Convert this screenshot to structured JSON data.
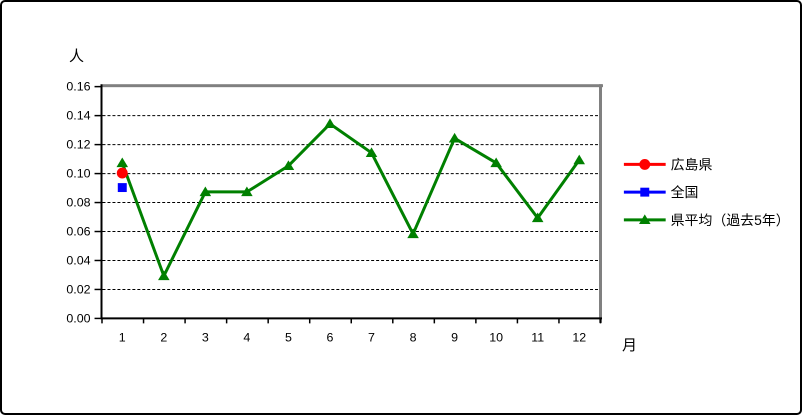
{
  "figure": {
    "y_unit_label": "人",
    "x_unit_label": "月"
  },
  "chart_data": {
    "type": "line",
    "title": "",
    "xlabel": "月",
    "ylabel": "人",
    "x_categories": [
      "1",
      "2",
      "3",
      "4",
      "5",
      "6",
      "7",
      "8",
      "9",
      "10",
      "11",
      "12"
    ],
    "ylim": [
      0,
      0.16
    ],
    "ytick_step": 0.02,
    "ytick_labels": [
      "0.00",
      "0.02",
      "0.04",
      "0.06",
      "0.08",
      "0.10",
      "0.12",
      "0.14",
      "0.16"
    ],
    "grid": "horizontal-dashed",
    "legend_position": "right",
    "series": [
      {
        "name": "広島県",
        "color": "#FF0000",
        "marker": "circle",
        "values": [
          0.1,
          null,
          null,
          null,
          null,
          null,
          null,
          null,
          null,
          null,
          null,
          null
        ]
      },
      {
        "name": "全国",
        "color": "#0000FF",
        "marker": "square",
        "values": [
          0.09,
          null,
          null,
          null,
          null,
          null,
          null,
          null,
          null,
          null,
          null,
          null
        ]
      },
      {
        "name": "県平均（過去5年）",
        "color": "#008000",
        "marker": "triangle",
        "values": [
          0.107,
          0.029,
          0.087,
          0.087,
          0.105,
          0.134,
          0.114,
          0.058,
          0.124,
          0.107,
          0.069,
          0.109
        ]
      }
    ],
    "colors": {
      "axis": "#000000",
      "gridline": "#000000",
      "plot_border_shadow": "#808080",
      "background": "#FFFFFF"
    }
  }
}
